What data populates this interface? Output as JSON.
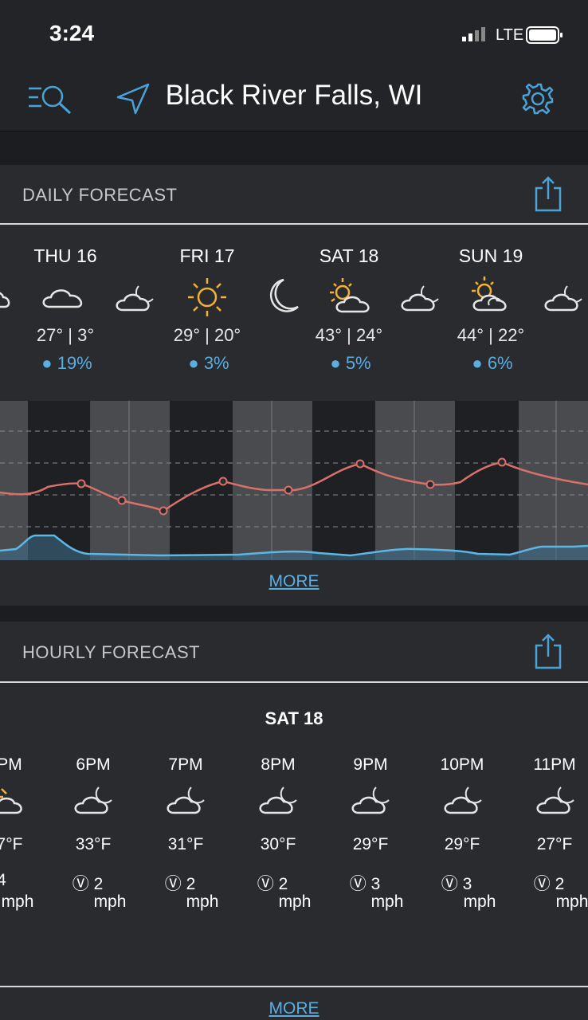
{
  "status": {
    "time": "3:24",
    "network": "LTE"
  },
  "header": {
    "city": "Black River Falls, WI"
  },
  "daily": {
    "title": "DAILY FORECAST",
    "more_label": "MORE",
    "days": [
      {
        "label": "THU 16",
        "temps": "27° | 3°",
        "precip": "19%"
      },
      {
        "label": "FRI 17",
        "temps": "29° | 20°",
        "precip": "3%"
      },
      {
        "label": "SAT 18",
        "temps": "43° | 24°",
        "precip": "5%"
      },
      {
        "label": "SUN 19",
        "temps": "44° | 22°",
        "precip": "6%"
      }
    ]
  },
  "hourly": {
    "title": "HOURLY FORECAST",
    "day": "SAT 18",
    "more_label": "MORE",
    "unit": "mph",
    "hours": [
      {
        "label": "PM",
        "temp": "7°F",
        "wind": "4"
      },
      {
        "label": "6PM",
        "temp": "33°F",
        "wind": "2"
      },
      {
        "label": "7PM",
        "temp": "31°F",
        "wind": "2"
      },
      {
        "label": "8PM",
        "temp": "30°F",
        "wind": "2"
      },
      {
        "label": "9PM",
        "temp": "29°F",
        "wind": "3"
      },
      {
        "label": "10PM",
        "temp": "29°F",
        "wind": "3"
      },
      {
        "label": "11PM",
        "temp": "27°F",
        "wind": "2"
      }
    ]
  },
  "colors": {
    "accent": "#4aa3d8",
    "temp_line": "#d9706a",
    "precip_line": "#5bb7e5",
    "sun": "#f2b233"
  }
}
